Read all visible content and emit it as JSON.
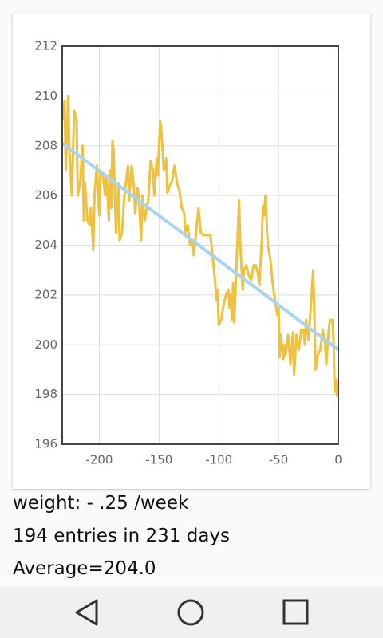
{
  "chart_data": {
    "type": "line",
    "xlim": [
      -231,
      0
    ],
    "xticks": [
      -200,
      -150,
      -100,
      -50,
      0
    ],
    "ylim": [
      196,
      212
    ],
    "yticks": [
      196,
      198,
      200,
      202,
      204,
      206,
      208,
      210,
      212
    ],
    "grid": true,
    "series": [
      {
        "color": "#efc13f",
        "x": [
          -231,
          -229,
          -228,
          -226,
          -225,
          -223,
          -221,
          -219,
          -218,
          -216,
          -214,
          -213,
          -212,
          -210,
          -208,
          -207,
          -205,
          -204,
          -202,
          -200,
          -199,
          -197,
          -195,
          -194,
          -192,
          -191,
          -190,
          -189,
          -188,
          -186,
          -184,
          -183,
          -181,
          -179,
          -177,
          -176,
          -175,
          -173,
          -171,
          -170,
          -168,
          -167,
          -165,
          -164,
          -162,
          -160,
          -159,
          -157,
          -155,
          -154,
          -152,
          -151,
          -150,
          -149,
          -148,
          -146,
          -144,
          -143,
          -141,
          -139,
          -137,
          -135,
          -133,
          -131,
          -129,
          -128,
          -126,
          -124,
          -122,
          -121,
          -119,
          -117,
          -115,
          -113,
          -110,
          -107,
          -105,
          -104,
          -103,
          -102,
          -101,
          -100,
          -98,
          -96,
          -94,
          -92,
          -91,
          -90,
          -89,
          -88,
          -87,
          -85,
          -83,
          -82,
          -80,
          -79,
          -77,
          -75,
          -73,
          -71,
          -69,
          -67,
          -66,
          -64,
          -63,
          -62,
          -61,
          -59,
          -57,
          -55,
          -53,
          -51,
          -50,
          -49,
          -48,
          -46,
          -45,
          -44,
          -42,
          -40,
          -38,
          -37,
          -35,
          -33,
          -31,
          -29,
          -28,
          -27,
          -25,
          -23,
          -21,
          -20,
          -19,
          -17,
          -15,
          -13,
          -11,
          -10,
          -8,
          -7,
          -5,
          -4,
          -3,
          -2,
          -1
        ],
        "values": [
          209,
          209.8,
          207,
          210,
          207.8,
          206,
          209.4,
          209,
          206,
          206.5,
          208,
          205,
          206.5,
          205,
          204.8,
          205.5,
          203.8,
          206,
          207.2,
          205.2,
          207,
          206.8,
          206,
          206.8,
          205,
          207,
          205.5,
          208.2,
          207.8,
          204.5,
          206.5,
          204.2,
          204.5,
          206,
          206.8,
          207.2,
          205.8,
          207.2,
          206.3,
          205.3,
          206.3,
          206,
          204.2,
          206,
          205,
          205.6,
          205.8,
          207.4,
          207,
          206,
          207.5,
          206.8,
          208,
          209,
          208.6,
          207,
          207.5,
          206.1,
          206.4,
          206.6,
          207.2,
          206.5,
          206.2,
          205.5,
          205.3,
          204.5,
          204.8,
          204,
          204.2,
          203.6,
          204.5,
          205.5,
          204.5,
          204.4,
          204.4,
          204.4,
          203.5,
          203,
          202.5,
          201.8,
          202.2,
          200.8,
          201,
          201.6,
          202,
          202.2,
          201.5,
          202,
          201,
          202.5,
          200.9,
          203.5,
          205.8,
          204,
          202.2,
          203,
          203.2,
          202.8,
          202.6,
          203.2,
          203.2,
          202.8,
          202.4,
          204.2,
          205.6,
          205.2,
          206,
          204,
          203.5,
          202.5,
          201.8,
          201.2,
          201.5,
          199.5,
          200.4,
          199.4,
          200,
          199.6,
          200.4,
          199.2,
          200.5,
          198.8,
          200.4,
          199.8,
          200.6,
          200.6,
          200,
          201,
          200.2,
          201.5,
          203,
          201.3,
          199,
          199.6,
          199.8,
          200.6,
          200,
          199.2,
          200.6,
          201,
          201,
          200.2,
          198.1,
          198.6,
          197.9
        ]
      },
      {
        "color": "#a9d3ee",
        "x": [
          -231,
          0
        ],
        "values": [
          208.1,
          199.8
        ]
      }
    ]
  },
  "info": [
    "weight: - .25 /week",
    "194 entries in 231 days",
    "Average=204.0"
  ]
}
